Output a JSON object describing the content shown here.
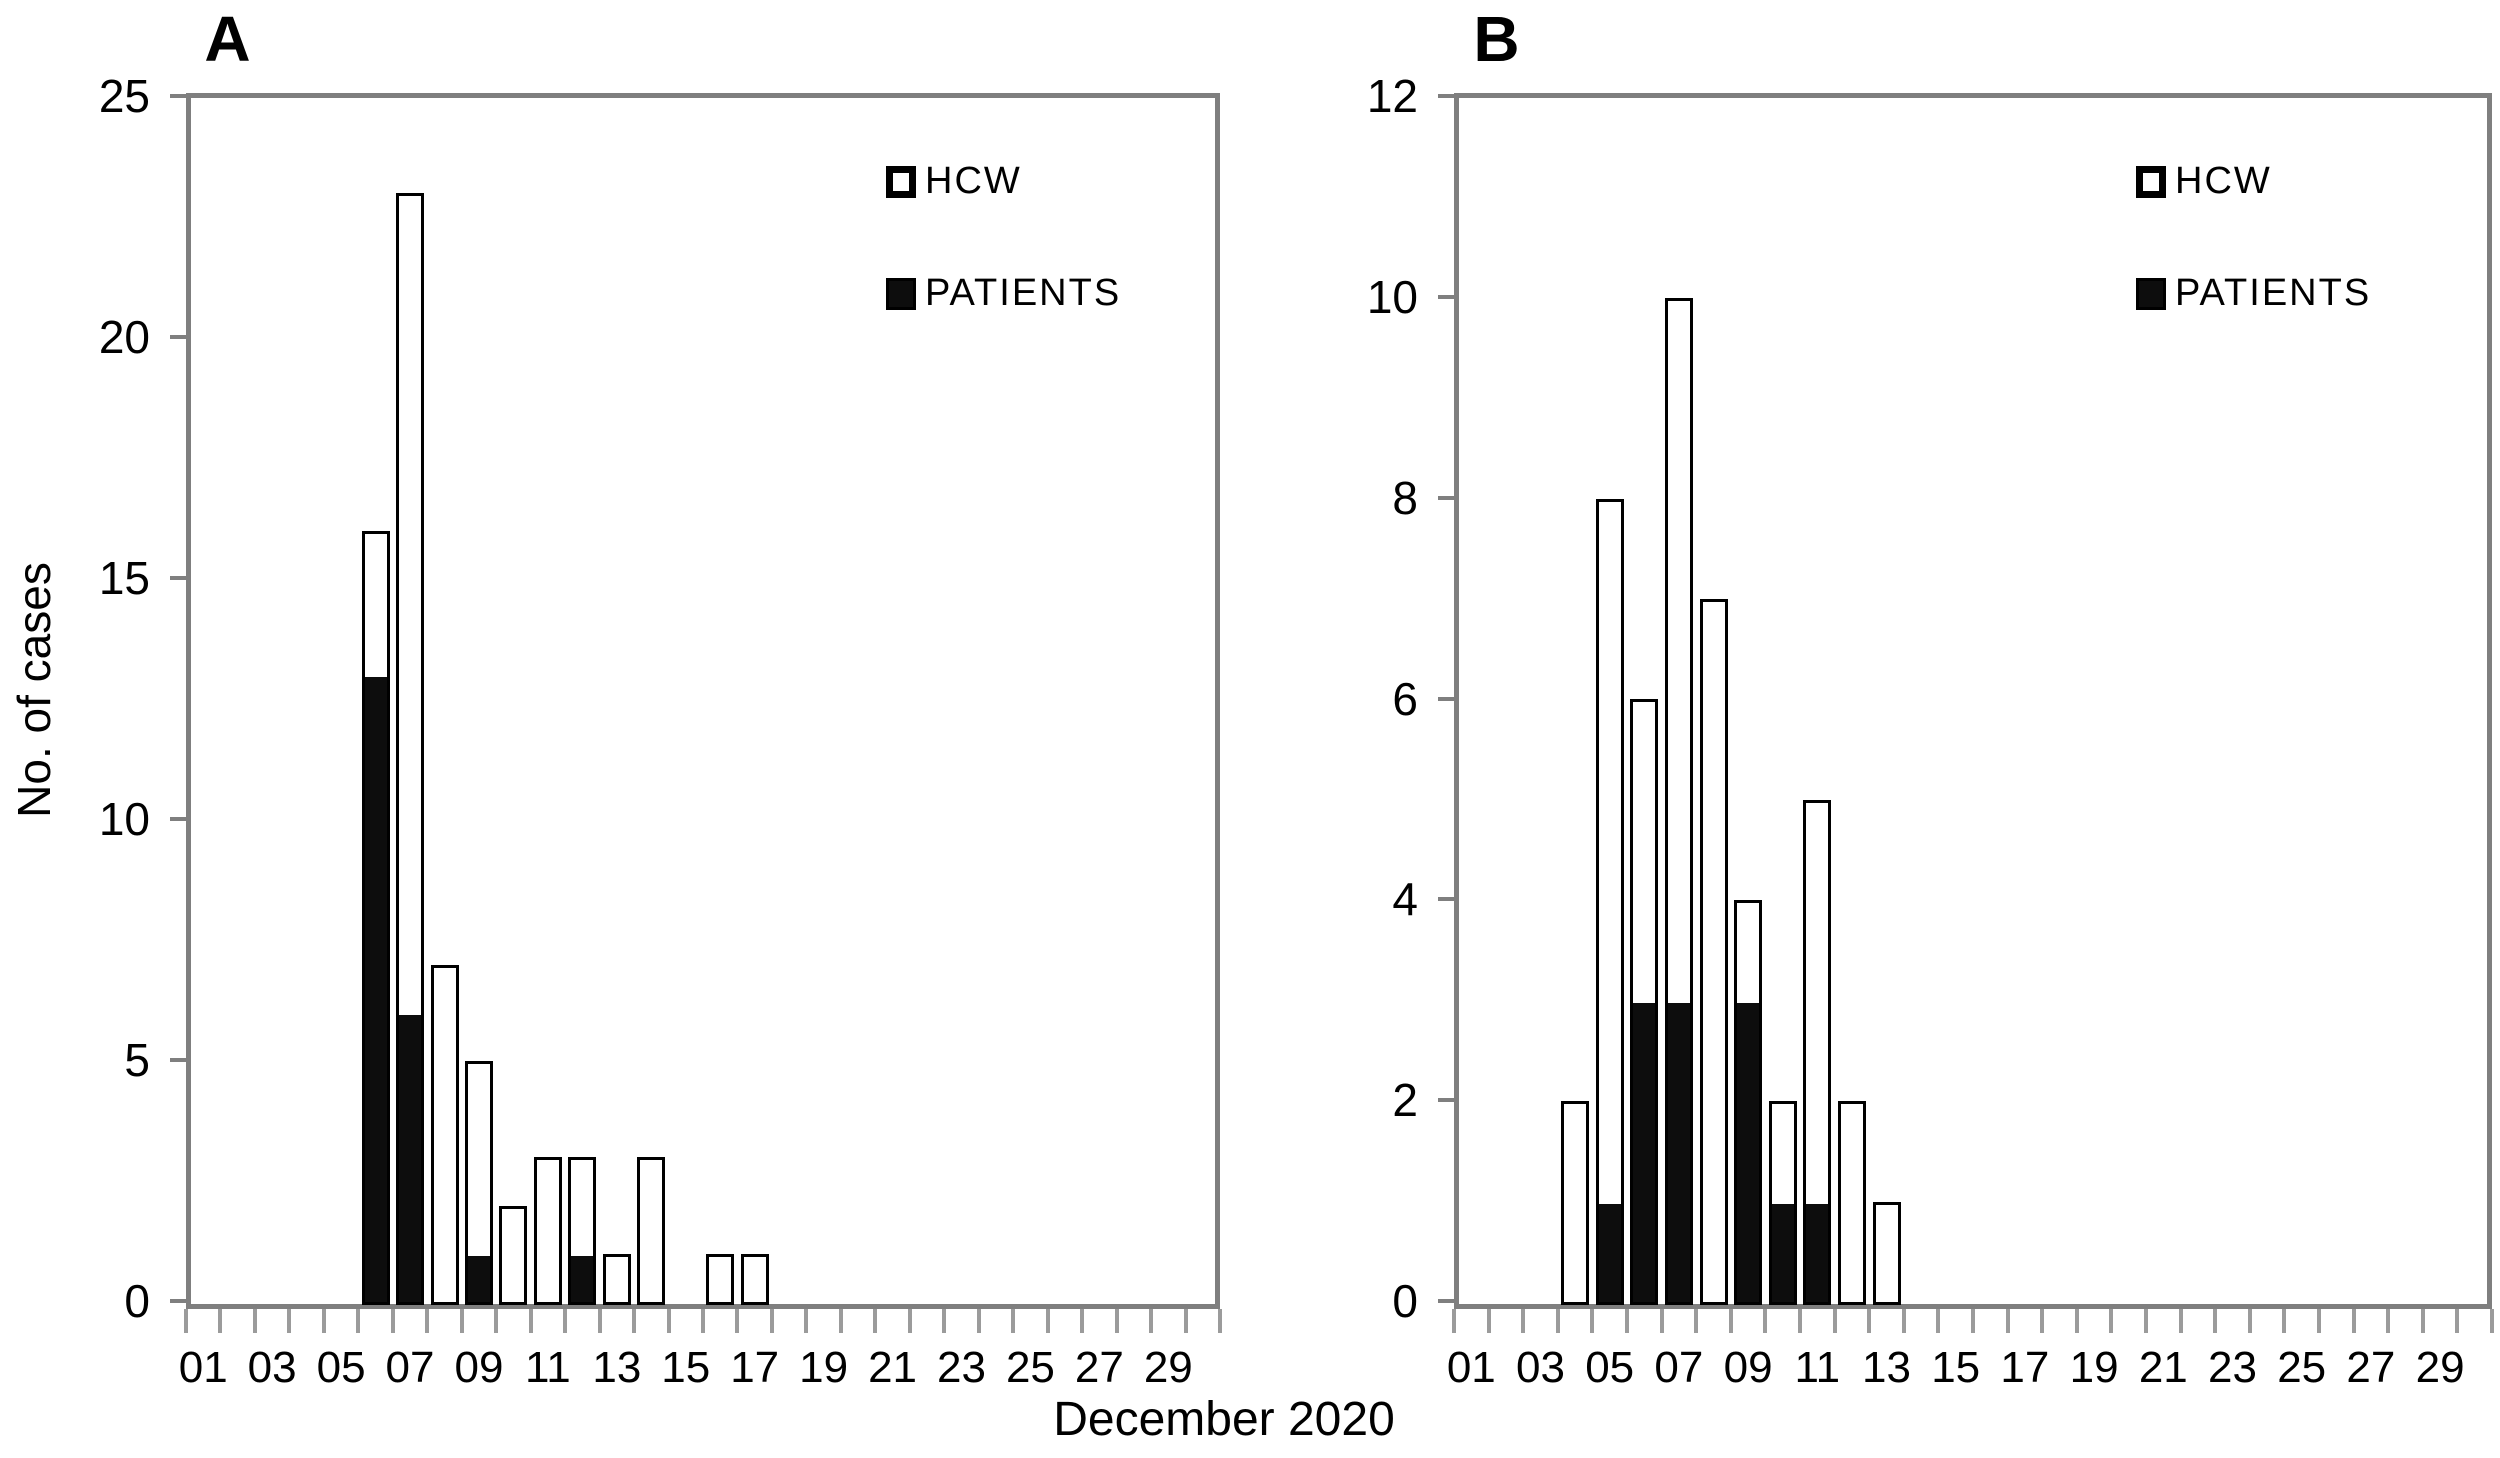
{
  "figure": {
    "xlabel": "December 2020",
    "ylabel": "No. of cases"
  },
  "legend": {
    "hcw_label": "HCW",
    "patients_label": "PATIENTS",
    "hcw_swatch": "open-white-square-icon",
    "patients_swatch": "filled-black-square-icon"
  },
  "colors": {
    "bar_outline": "#000000",
    "patients_fill": "#0d0d0d",
    "hcw_fill": "#ffffff",
    "frame_gray": "#7f7f7f",
    "tick_gray": "#9b9b9b",
    "text": "#000000"
  },
  "chart_data": [
    {
      "type": "bar",
      "stacked": true,
      "title": "A",
      "n_days": 30,
      "ylim": [
        0,
        25
      ],
      "ytick_labels": [
        "25",
        "20",
        "15",
        "10",
        "5",
        "0"
      ],
      "xtick_labels": [
        "01",
        "03",
        "05",
        "07",
        "09",
        "11",
        "13",
        "15",
        "17",
        "19",
        "21",
        "23",
        "25",
        "27",
        "29"
      ],
      "grid": false,
      "legend_position": "upper-right-inside",
      "stack_order": [
        "PATIENTS",
        "HCW"
      ],
      "series": [
        {
          "name": "PATIENTS",
          "values": [
            0,
            0,
            0,
            0,
            0,
            13,
            6,
            0,
            1,
            0,
            0,
            1,
            0,
            0,
            0,
            0,
            0,
            0,
            0,
            0,
            0,
            0,
            0,
            0,
            0,
            0,
            0,
            0,
            0,
            0
          ]
        },
        {
          "name": "HCW",
          "values": [
            0,
            0,
            0,
            0,
            0,
            3,
            17,
            7,
            4,
            2,
            3,
            2,
            1,
            3,
            0,
            1,
            1,
            0,
            0,
            0,
            0,
            0,
            0,
            0,
            0,
            0,
            0,
            0,
            0,
            0
          ]
        }
      ]
    },
    {
      "type": "bar",
      "stacked": true,
      "title": "B",
      "n_days": 30,
      "ylim": [
        0,
        12
      ],
      "ytick_labels": [
        "12",
        "10",
        "8",
        "6",
        "4",
        "2",
        "0"
      ],
      "xtick_labels": [
        "01",
        "03",
        "05",
        "07",
        "09",
        "11",
        "13",
        "15",
        "17",
        "19",
        "21",
        "23",
        "25",
        "27",
        "29"
      ],
      "grid": false,
      "legend_position": "upper-right-inside",
      "stack_order": [
        "PATIENTS",
        "HCW"
      ],
      "series": [
        {
          "name": "PATIENTS",
          "values": [
            0,
            0,
            0,
            0,
            1,
            3,
            3,
            0,
            3,
            1,
            1,
            0,
            0,
            0,
            0,
            0,
            0,
            0,
            0,
            0,
            0,
            0,
            0,
            0,
            0,
            0,
            0,
            0,
            0,
            0
          ]
        },
        {
          "name": "HCW",
          "values": [
            0,
            0,
            0,
            2,
            7,
            3,
            7,
            7,
            1,
            1,
            4,
            2,
            1,
            0,
            0,
            0,
            0,
            0,
            0,
            0,
            0,
            0,
            0,
            0,
            0,
            0,
            0,
            0,
            0,
            0
          ]
        }
      ]
    }
  ]
}
